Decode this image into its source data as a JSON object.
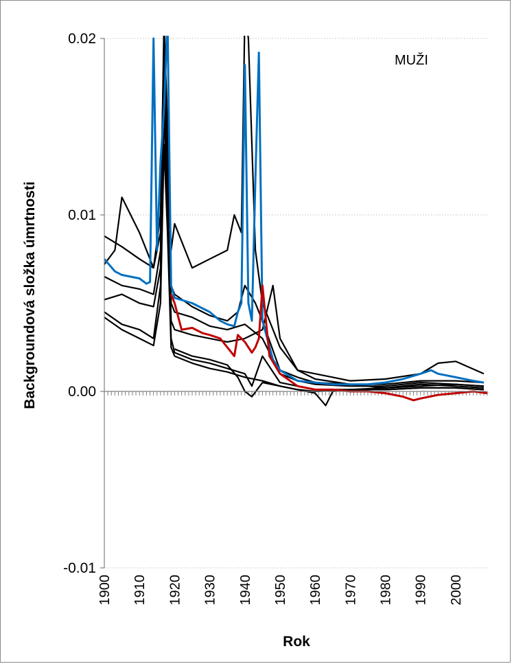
{
  "chart_data": {
    "type": "line",
    "title": "",
    "xlabel": "Rok",
    "ylabel": "Backgroundová složka úmrtnosti",
    "annotation": "MUŽI",
    "xlim": [
      1900,
      2009
    ],
    "ylim": [
      -0.01,
      0.02
    ],
    "x_ticks": [
      "1900",
      "1910",
      "1920",
      "1930",
      "1940",
      "1950",
      "1960",
      "1970",
      "1980",
      "1990",
      "2000"
    ],
    "y_ticks": [
      "0.02",
      "0.01",
      "0.00",
      "-0.01"
    ],
    "y_tick_values": [
      0.02,
      0.01,
      0.0,
      -0.01
    ],
    "grid": true,
    "series": [
      {
        "color": "#000000",
        "x": [
          1900,
          1905,
          1910,
          1914,
          1916,
          1917,
          1918,
          1919,
          1920,
          1925,
          1930,
          1935,
          1938,
          1940,
          1943,
          1945,
          1950,
          1955,
          1960,
          1970,
          1980,
          1990,
          2000,
          2008
        ],
        "y": [
          0.0088,
          0.0082,
          0.0075,
          0.007,
          0.009,
          0.021,
          0.015,
          0.006,
          0.0055,
          0.0048,
          0.0043,
          0.004,
          0.0045,
          0.006,
          0.005,
          0.004,
          0.0012,
          0.0008,
          0.0005,
          0.0004,
          0.0004,
          0.0006,
          0.0006,
          0.0005
        ]
      },
      {
        "color": "#000000",
        "x": [
          1900,
          1903,
          1905,
          1910,
          1914,
          1916,
          1917,
          1918,
          1919,
          1920,
          1925,
          1930,
          1935,
          1937,
          1939,
          1940,
          1941,
          1943,
          1945,
          1950,
          1955,
          1960,
          1965,
          1970,
          1980,
          1990,
          1995,
          2000,
          2008
        ],
        "y": [
          0.0072,
          0.008,
          0.011,
          0.009,
          0.007,
          0.01,
          0.02,
          0.015,
          0.008,
          0.0095,
          0.007,
          0.0075,
          0.008,
          0.01,
          0.009,
          0.0215,
          0.02,
          0.008,
          0.005,
          0.0025,
          0.0012,
          0.001,
          0.0008,
          0.0006,
          0.0007,
          0.001,
          0.0016,
          0.0017,
          0.001
        ]
      },
      {
        "color": "#000000",
        "x": [
          1900,
          1905,
          1910,
          1914,
          1916,
          1917,
          1918,
          1919,
          1920,
          1925,
          1930,
          1935,
          1940,
          1945,
          1950,
          1955,
          1960,
          1970,
          1980,
          1990,
          2000,
          2008
        ],
        "y": [
          0.0065,
          0.006,
          0.0058,
          0.0055,
          0.008,
          0.019,
          0.014,
          0.005,
          0.0045,
          0.0042,
          0.0037,
          0.0035,
          0.0038,
          0.003,
          0.001,
          0.0006,
          0.0004,
          0.0003,
          0.0003,
          0.0005,
          0.0004,
          0.0003
        ]
      },
      {
        "color": "#000000",
        "x": [
          1900,
          1905,
          1910,
          1914,
          1916,
          1917,
          1918,
          1919,
          1920,
          1925,
          1930,
          1935,
          1940,
          1945,
          1948,
          1950,
          1955,
          1960,
          1970,
          1980,
          1990,
          2000,
          2008
        ],
        "y": [
          0.0052,
          0.0055,
          0.005,
          0.0048,
          0.007,
          0.018,
          0.012,
          0.004,
          0.0035,
          0.0032,
          0.003,
          0.0028,
          0.003,
          0.0035,
          0.006,
          0.003,
          0.0012,
          0.0007,
          0.0004,
          0.0002,
          0.0004,
          0.0003,
          0.0002
        ]
      },
      {
        "color": "#000000",
        "x": [
          1900,
          1905,
          1910,
          1914,
          1916,
          1917,
          1918,
          1919,
          1920,
          1925,
          1930,
          1935,
          1940,
          1942,
          1945,
          1950,
          1955,
          1960,
          1970,
          1980,
          1990,
          2000,
          2008
        ],
        "y": [
          0.0045,
          0.0038,
          0.0035,
          0.003,
          0.006,
          0.016,
          0.01,
          0.003,
          0.0022,
          0.0018,
          0.0016,
          0.0013,
          0.001,
          0.0003,
          0.002,
          0.0005,
          0.0003,
          0.0001,
          0.0001,
          0.0001,
          0.0002,
          0.0002,
          0.0001
        ]
      },
      {
        "color": "#000000",
        "x": [
          1900,
          1905,
          1910,
          1914,
          1916,
          1917,
          1918,
          1919,
          1920,
          1925,
          1930,
          1935,
          1940,
          1945,
          1950,
          1955,
          1960,
          1963,
          1965,
          1970,
          1980,
          1990,
          2000,
          2008
        ],
        "y": [
          0.0042,
          0.0035,
          0.003,
          0.0026,
          0.005,
          0.014,
          0.009,
          0.0025,
          0.002,
          0.0016,
          0.0013,
          0.0011,
          0.0008,
          0.0006,
          0.0003,
          0.0001,
          -0.0001,
          -0.0008,
          0.0,
          0.0001,
          0.0001,
          0.0002,
          0.0002,
          0.0001
        ]
      },
      {
        "color": "#000000",
        "x": [
          1920,
          1925,
          1930,
          1935,
          1938,
          1940,
          1942,
          1945,
          1950,
          1955,
          1960,
          1970,
          1980,
          1990,
          2000,
          2008
        ],
        "y": [
          0.0024,
          0.002,
          0.0018,
          0.0015,
          0.0008,
          0.0,
          -0.0003,
          0.0005,
          0.0003,
          0.0001,
          0.0,
          0.0001,
          0.0002,
          0.0003,
          0.0004,
          0.0003
        ]
      },
      {
        "color": "#0070C0",
        "x": [
          1900,
          1903,
          1905,
          1910,
          1912,
          1913,
          1914,
          1915,
          1916,
          1917,
          1918,
          1919,
          1920,
          1925,
          1930,
          1933,
          1935,
          1937,
          1938,
          1939,
          1940,
          1941,
          1942,
          1943,
          1944,
          1945,
          1948,
          1950,
          1955,
          1960,
          1965,
          1970,
          1975,
          1980,
          1985,
          1990,
          1993,
          1995,
          2000,
          2005,
          2008
        ],
        "y": [
          0.0075,
          0.0068,
          0.0066,
          0.0064,
          0.0061,
          0.0062,
          0.02,
          0.008,
          0.013,
          0.016,
          0.021,
          0.006,
          0.0053,
          0.005,
          0.0045,
          0.004,
          0.0038,
          0.0037,
          0.0045,
          0.005,
          0.0185,
          0.005,
          0.004,
          0.012,
          0.0192,
          0.004,
          0.0018,
          0.0012,
          0.0006,
          0.0005,
          0.0004,
          0.0004,
          0.0004,
          0.0005,
          0.0007,
          0.001,
          0.0012,
          0.001,
          0.0008,
          0.0006,
          0.0005
        ]
      },
      {
        "color": "#C00000",
        "x": [
          1919,
          1920,
          1922,
          1925,
          1928,
          1930,
          1933,
          1935,
          1937,
          1938,
          1939,
          1940,
          1941,
          1942,
          1943,
          1944,
          1945,
          1947,
          1950,
          1955,
          1960,
          1965,
          1970,
          1975,
          1980,
          1985,
          1988,
          1990,
          1995,
          2000,
          2005,
          2009
        ],
        "y": [
          0.0055,
          0.005,
          0.0035,
          0.0036,
          0.0033,
          0.0032,
          0.003,
          0.0025,
          0.002,
          0.0032,
          0.003,
          0.0028,
          0.0025,
          0.0022,
          0.0025,
          0.003,
          0.006,
          0.002,
          0.001,
          0.0003,
          0.0001,
          0.0001,
          0.0,
          0.0,
          -0.0001,
          -0.0003,
          -0.0005,
          -0.0004,
          -0.0002,
          -0.0001,
          0.0,
          -0.0001
        ]
      }
    ]
  }
}
